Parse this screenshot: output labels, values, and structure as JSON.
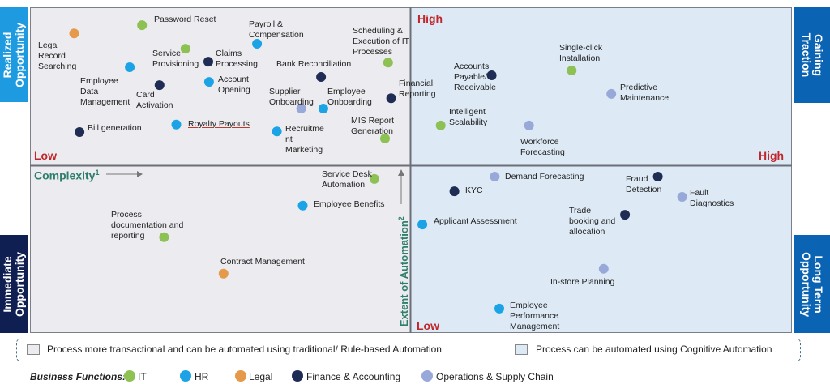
{
  "side_labels": {
    "realized": "Realized Opportunity",
    "gaining": "Gaining Traction",
    "immediate": "Immediate Opportunity",
    "long_term": "Long Term Opportunity"
  },
  "axis": {
    "high_top": "High",
    "low_left": "Low",
    "high_right": "High",
    "low_bottom": "Low",
    "complexity": "Complexity",
    "complexity_sup": "1",
    "automation": "Extent of Automation",
    "automation_sup": "2"
  },
  "colors": {
    "IT": "#8dc153",
    "HR": "#1ba3e6",
    "Legal": "#e59a4b",
    "Finance": "#1f2d55",
    "Operations": "#98a9d9",
    "left_quad_bg": "#ececf0",
    "right_quad_bg": "#ddeaf6",
    "side_light": "#1e9be0",
    "side_dark": "#0b64b3",
    "side_navy": "#101f52"
  },
  "chart_data": {
    "type": "scatter",
    "title": "",
    "xlabel": "Complexity",
    "ylabel": "Extent of Automation",
    "xlim": [
      0,
      100
    ],
    "ylim": [
      0,
      100
    ],
    "points": [
      {
        "label": "Password Reset",
        "x": 14.7,
        "y": 94.5,
        "cat": "IT"
      },
      {
        "label": "Legal Record Searching",
        "x": 5.8,
        "y": 92.0,
        "cat": "Legal"
      },
      {
        "label": "Payroll & Compensation",
        "x": 29.8,
        "y": 88.8,
        "cat": "HR"
      },
      {
        "label": "Scheduling & Execution of IT Processes",
        "x": 47.0,
        "y": 83.0,
        "cat": "IT"
      },
      {
        "label": "Service Provisioning",
        "x": 20.4,
        "y": 87.3,
        "cat": "IT"
      },
      {
        "label": "Claims Processing",
        "x": 23.4,
        "y": 83.3,
        "cat": "Finance"
      },
      {
        "label": "Employee Data Management",
        "x": 13.1,
        "y": 81.6,
        "cat": "HR"
      },
      {
        "label": "Bank Reconciliation",
        "x": 38.2,
        "y": 78.6,
        "cat": "Finance"
      },
      {
        "label": "Card Activation",
        "x": 17.0,
        "y": 76.1,
        "cat": "Finance"
      },
      {
        "label": "Account Opening",
        "x": 23.5,
        "y": 77.1,
        "cat": "HR"
      },
      {
        "label": "Financial Reporting",
        "x": 47.4,
        "y": 72.1,
        "cat": "Finance"
      },
      {
        "label": "Employee Onboarding",
        "x": 38.5,
        "y": 68.9,
        "cat": "HR"
      },
      {
        "label": "Supplier Onboarding",
        "x": 35.6,
        "y": 68.9,
        "cat": "Operations"
      },
      {
        "label": "Bill generation",
        "x": 6.5,
        "y": 61.7,
        "cat": "Finance"
      },
      {
        "label": "Royalty Payouts",
        "x": 19.2,
        "y": 64.0,
        "cat": "HR"
      },
      {
        "label": "Recruitment Marketing",
        "x": 32.4,
        "y": 61.9,
        "cat": "HR"
      },
      {
        "label": "MIS Report Generation",
        "x": 46.6,
        "y": 59.7,
        "cat": "IT"
      },
      {
        "label": "Accounts Payable/ Receivable",
        "x": 60.6,
        "y": 79.1,
        "cat": "Finance"
      },
      {
        "label": "Single-click Installation",
        "x": 71.1,
        "y": 80.6,
        "cat": "IT"
      },
      {
        "label": "Predictive Maintenance",
        "x": 76.3,
        "y": 73.4,
        "cat": "Operations"
      },
      {
        "label": "Intelligent Scalability",
        "x": 53.9,
        "y": 63.7,
        "cat": "IT"
      },
      {
        "label": "Workforce Forecasting",
        "x": 65.5,
        "y": 63.7,
        "cat": "Operations"
      },
      {
        "label": "Service Desk Automation",
        "x": 45.2,
        "y": 47.3,
        "cat": "IT"
      },
      {
        "label": "Employee Benefits",
        "x": 35.8,
        "y": 39.1,
        "cat": "HR"
      },
      {
        "label": "Process documentation and reporting",
        "x": 17.6,
        "y": 29.4,
        "cat": "IT"
      },
      {
        "label": "Contract Management",
        "x": 25.4,
        "y": 18.2,
        "cat": "Legal"
      },
      {
        "label": "Demand Forecasting",
        "x": 61.0,
        "y": 48.0,
        "cat": "Operations"
      },
      {
        "label": "KYC",
        "x": 55.7,
        "y": 43.5,
        "cat": "Finance"
      },
      {
        "label": "Fraud Detection",
        "x": 82.4,
        "y": 48.0,
        "cat": "Finance"
      },
      {
        "label": "Fault Diagnostics",
        "x": 85.6,
        "y": 41.8,
        "cat": "Operations"
      },
      {
        "label": "Applicant Assessment",
        "x": 51.5,
        "y": 33.3,
        "cat": "HR"
      },
      {
        "label": "Trade booking and allocation",
        "x": 78.1,
        "y": 36.3,
        "cat": "Finance"
      },
      {
        "label": "In-store Planning",
        "x": 75.3,
        "y": 19.7,
        "cat": "Operations"
      },
      {
        "label": "Employee Performance Management",
        "x": 61.6,
        "y": 7.5,
        "cat": "HR"
      }
    ]
  },
  "point_labels": {
    "password_reset": "Password Reset",
    "legal_1": "Legal",
    "legal_2": "Record",
    "legal_3": "Searching",
    "payroll_1": "Payroll &",
    "payroll_2": "Compensation",
    "sched_1": "Scheduling &",
    "sched_2": "Execution of IT",
    "sched_3": "Processes",
    "service_1": "Service",
    "service_2": "Provisioning",
    "claims_1": "Claims",
    "claims_2": "Processing",
    "edm_1": "Employee",
    "edm_2": "Data",
    "edm_3": "Management",
    "bank_rec": "Bank Reconciliation",
    "card_1": "Card",
    "card_2": "Activation",
    "acct_1": "Account",
    "acct_2": "Opening",
    "fin_1": "Financial",
    "fin_2": "Reporting",
    "emp_on_1": "Employee",
    "emp_on_2": "Onboarding",
    "sup_1": "Supplier",
    "sup_2": "Onboarding",
    "bill": "Bill generation",
    "royalty": "Royalty Payouts",
    "recruit_1": "Recruitme",
    "recruit_2": "nt",
    "recruit_3": "Marketing",
    "mis_1": "MIS Report",
    "mis_2": "Generation",
    "ap_1": "Accounts",
    "ap_2": "Payable/",
    "ap_3": "Receivable",
    "sc_1": "Single-click",
    "sc_2": "Installation",
    "pm_1": "Predictive",
    "pm_2": "Maintenance",
    "is_1": "Intelligent",
    "is_2": "Scalability",
    "wf_1": "Workforce",
    "wf_2": "Forecasting",
    "sd_1": "Service Desk",
    "sd_2": "Automation",
    "emp_ben": "Employee Benefits",
    "pdr_1": "Process",
    "pdr_2": "documentation and",
    "pdr_3": "reporting",
    "contract": "Contract Management",
    "demand": "Demand Forecasting",
    "kyc": "KYC",
    "fraud_1": "Fraud",
    "fraud_2": "Detection",
    "fault_1": "Fault",
    "fault_2": "Diagnostics",
    "applicant": "Applicant Assessment",
    "trade_1": "Trade",
    "trade_2": "booking and",
    "trade_3": "allocation",
    "instore": "In-store Planning",
    "epm_1": "Employee",
    "epm_2": "Performance",
    "epm_3": "Management"
  },
  "legend": {
    "rule_based": "Process more transactional and can be automated using traditional/ Rule-based Automation",
    "cognitive": "Process can be automated using Cognitive Automation"
  },
  "business_functions": {
    "title": "Business Functions:",
    "it": "IT",
    "hr": "HR",
    "legal": "Legal",
    "finance": "Finance & Accounting",
    "ops": "Operations & Supply Chain"
  }
}
